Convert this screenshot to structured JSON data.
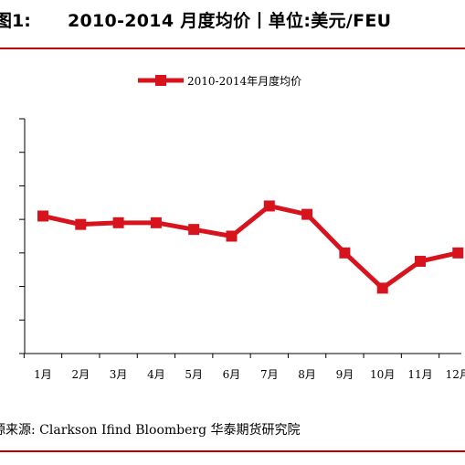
{
  "title": {
    "figure_number": "图1:",
    "text": "2010-2014 月度均价丨单位:美元/FEU"
  },
  "source": "源来源: Clarkson Ifind Bloomberg 华泰期货研究院",
  "chart_data": {
    "type": "line",
    "title": "",
    "xlabel": "",
    "ylabel": "",
    "categories": [
      "1月",
      "2月",
      "3月",
      "4月",
      "5月",
      "6月",
      "7月",
      "8月",
      "9月",
      "10月",
      "11月",
      "12月"
    ],
    "series": [
      {
        "name": "2010-2014年月度均价",
        "color": "#d7141e",
        "marker": "square",
        "values": [
          0.82,
          0.77,
          0.78,
          0.78,
          0.74,
          0.7,
          0.88,
          0.83,
          0.6,
          0.39,
          0.55,
          0.6
        ]
      }
    ],
    "ylim": [
      0,
      1.4
    ],
    "ytick_count": 8,
    "grid": false,
    "legend": "top-center"
  }
}
